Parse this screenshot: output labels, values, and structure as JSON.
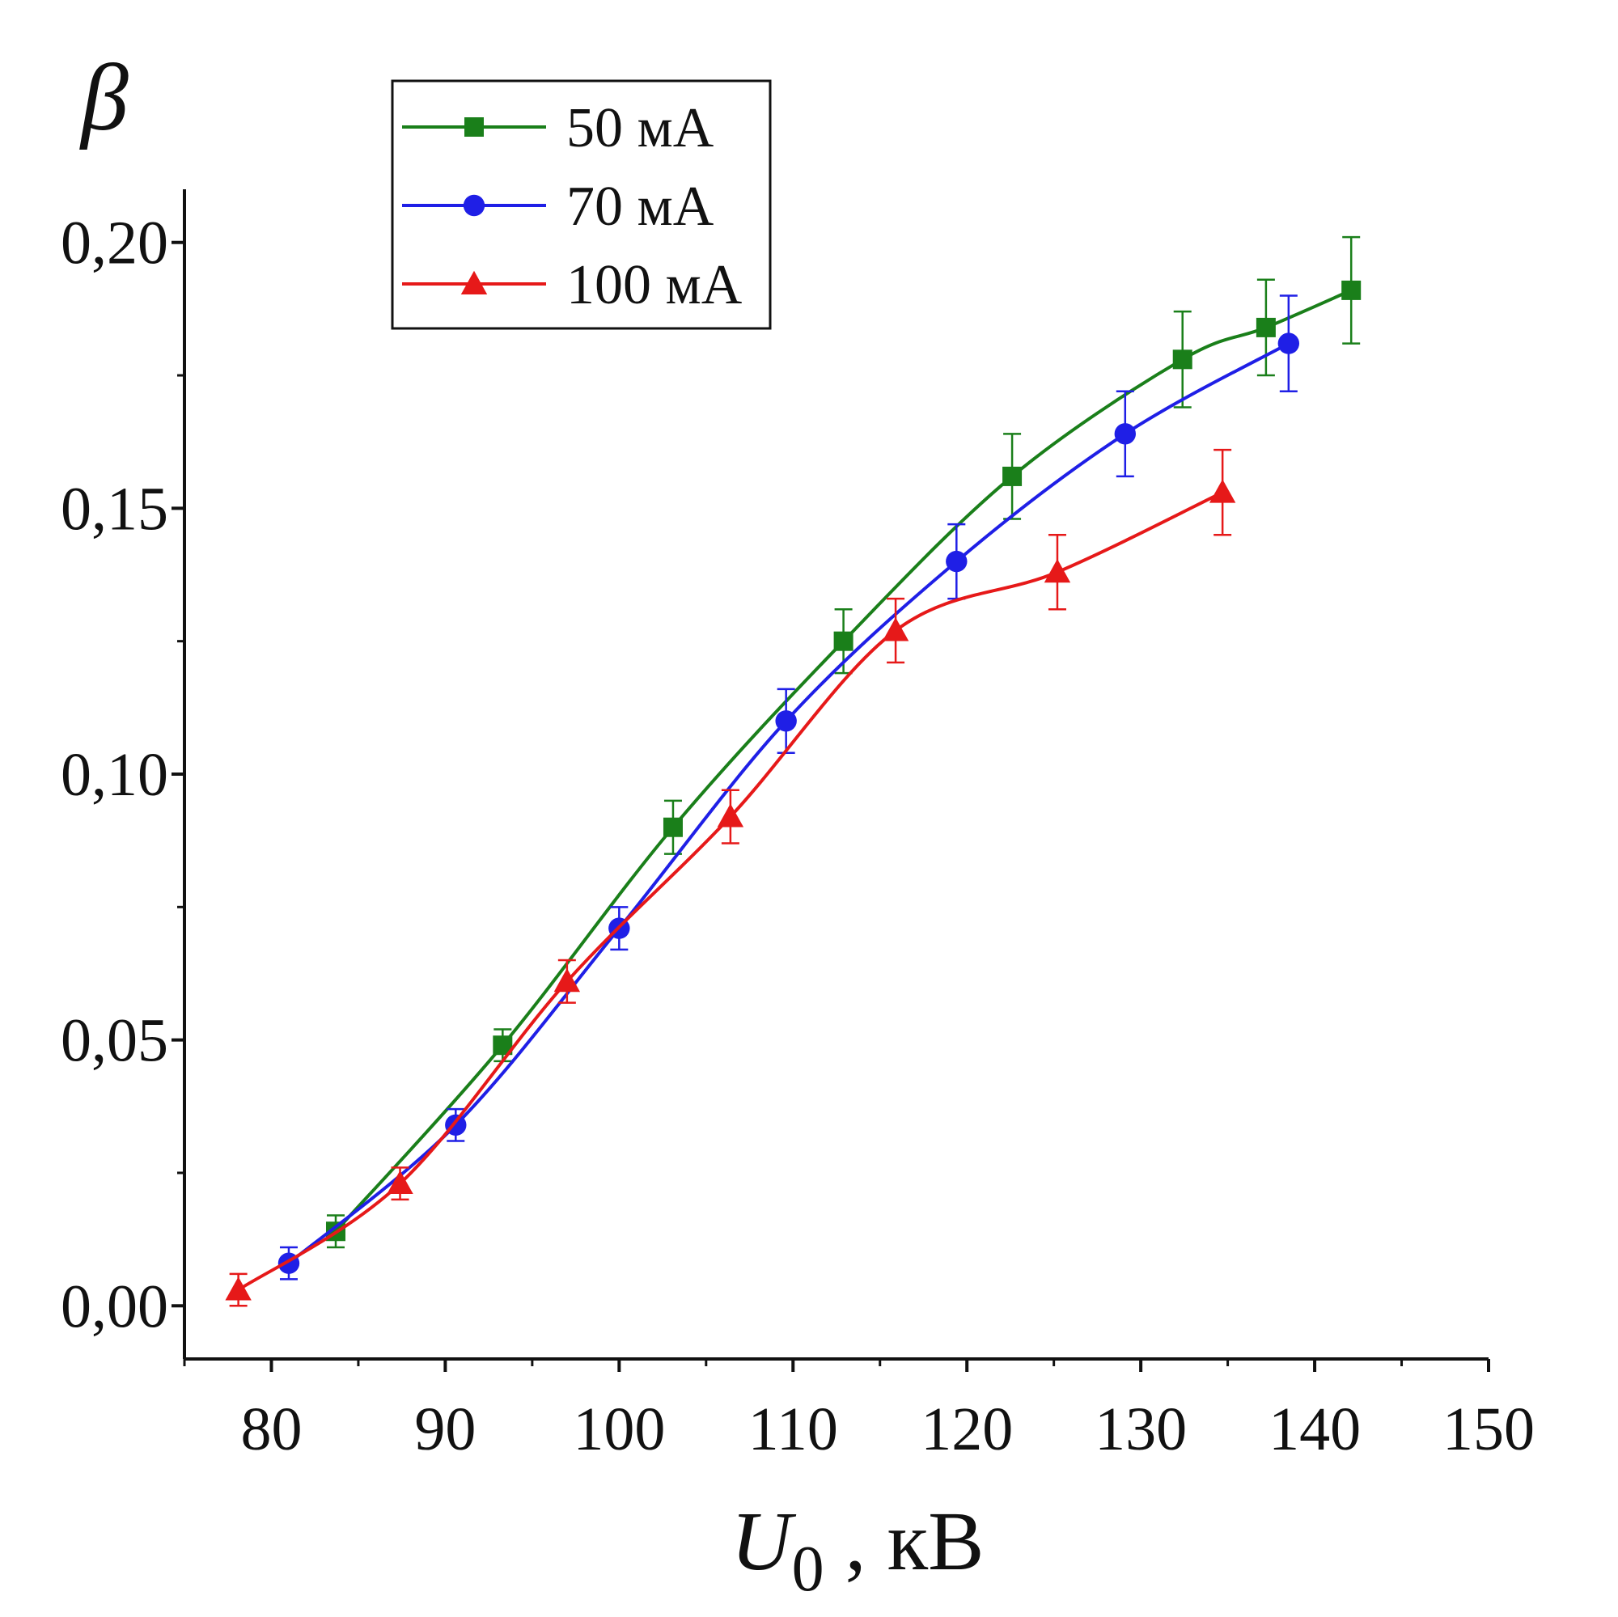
{
  "chart_data": {
    "type": "line",
    "title": "",
    "y_symbol": "β",
    "xlabel_var": "U",
    "xlabel_sub": "0",
    "xlabel_unit": " , кВ",
    "xlim": [
      75,
      150
    ],
    "ylim": [
      -0.01,
      0.21
    ],
    "x_ticks": [
      80,
      90,
      100,
      110,
      120,
      130,
      140,
      150
    ],
    "x_tick_labels": [
      "80",
      "90",
      "100",
      "110",
      "120",
      "130",
      "140",
      "150"
    ],
    "y_ticks": [
      0.0,
      0.05,
      0.1,
      0.15,
      0.2
    ],
    "y_tick_labels": [
      "0,00",
      "0,05",
      "0,10",
      "0,15",
      "0,20"
    ],
    "legend_position": "top-left",
    "series": [
      {
        "name": "50 мА",
        "color": "#1a7f1a",
        "marker": "square",
        "x": [
          83.7,
          93.3,
          103.1,
          112.9,
          122.6,
          132.4,
          137.2,
          142.1
        ],
        "y": [
          0.014,
          0.049,
          0.09,
          0.125,
          0.156,
          0.178,
          0.184,
          0.191
        ],
        "err": [
          0.003,
          0.003,
          0.005,
          0.006,
          0.008,
          0.009,
          0.009,
          0.01
        ]
      },
      {
        "name": "70 мА",
        "color": "#1f1fe6",
        "marker": "circle",
        "x": [
          81.0,
          90.6,
          100.0,
          109.6,
          119.4,
          129.1,
          138.5
        ],
        "y": [
          0.008,
          0.034,
          0.071,
          0.11,
          0.14,
          0.164,
          0.181
        ],
        "err": [
          0.003,
          0.003,
          0.004,
          0.006,
          0.007,
          0.008,
          0.009
        ]
      },
      {
        "name": "100 мА",
        "color": "#e61919",
        "marker": "triangle",
        "x": [
          78.1,
          87.4,
          97.0,
          106.4,
          115.9,
          125.2,
          134.7
        ],
        "y": [
          0.003,
          0.023,
          0.061,
          0.092,
          0.127,
          0.138,
          0.153
        ],
        "err": [
          0.003,
          0.003,
          0.004,
          0.005,
          0.006,
          0.007,
          0.008
        ]
      }
    ]
  }
}
